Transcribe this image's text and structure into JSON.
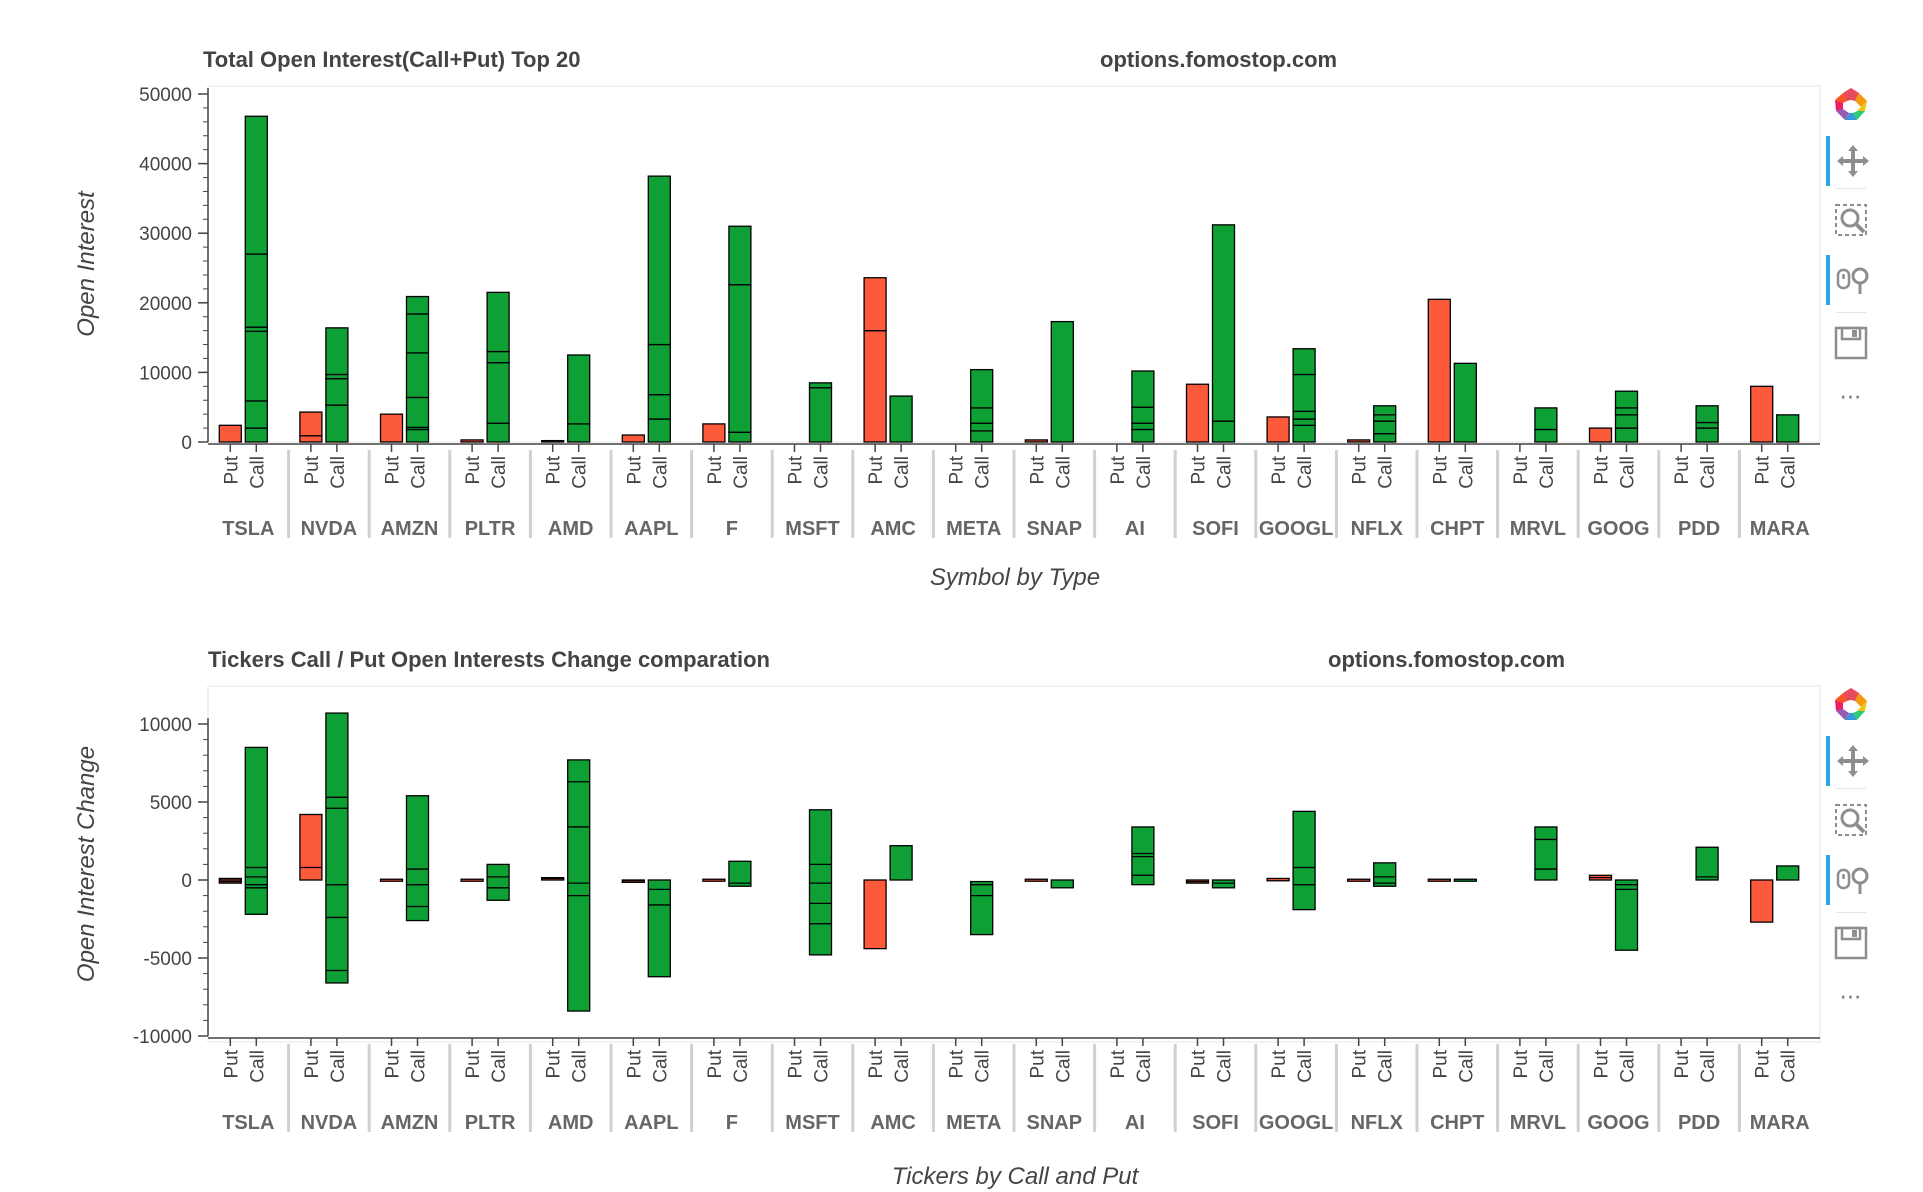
{
  "colors": {
    "put": "#fd5a3c",
    "call": "#0fa035",
    "outline": "#000000",
    "text": "#444444",
    "category_text": "#666666",
    "toolbar_active": "#26aae1"
  },
  "toolbar": {
    "icons": [
      "bokeh-logo-icon",
      "pan-icon",
      "box-zoom-icon",
      "wheel-zoom-icon",
      "save-icon",
      "more-icon"
    ],
    "more_label": "⋯"
  },
  "chart_data": [
    {
      "type": "bar",
      "stacked": true,
      "title": "Total Open Interest(Call+Put) Top 20",
      "watermark": "options.fomostop.com",
      "xlabel": "Symbol by Type",
      "ylabel": "Open Interest",
      "ylim": [
        0,
        50000
      ],
      "yticks": [
        0,
        10000,
        20000,
        30000,
        40000,
        50000
      ],
      "grid": false,
      "categories": [
        "TSLA",
        "NVDA",
        "AMZN",
        "PLTR",
        "AMD",
        "AAPL",
        "F",
        "MSFT",
        "AMC",
        "META",
        "SNAP",
        "AI",
        "SOFI",
        "GOOGL",
        "NFLX",
        "CHPT",
        "MRVL",
        "GOOG",
        "PDD",
        "MARA"
      ],
      "types": [
        "Put",
        "Call"
      ],
      "series": [
        {
          "name": "Put",
          "segments": [
            [
              2400
            ],
            [
              900,
              3400
            ],
            [
              4000
            ],
            [
              300
            ],
            [
              200
            ],
            [
              1000
            ],
            [
              2600
            ],
            [
              0
            ],
            [
              16000,
              7600
            ],
            [
              0
            ],
            [
              300
            ],
            [
              0
            ],
            [
              8300
            ],
            [
              3600
            ],
            [
              300
            ],
            [
              20500
            ],
            [
              0
            ],
            [
              2000
            ],
            [
              0
            ],
            [
              8000
            ]
          ]
        },
        {
          "name": "Call",
          "segments": [
            [
              2000,
              3900,
              10000,
              600,
              10500,
              19800
            ],
            [
              5300,
              3800,
              600,
              6700
            ],
            [
              1800,
              300,
              4300,
              6400,
              5600,
              2500
            ],
            [
              2700,
              8700,
              1600,
              8500
            ],
            [
              2600,
              9900
            ],
            [
              3300,
              3500,
              7200,
              24200
            ],
            [
              1400,
              21200,
              8400
            ],
            [
              7800,
              700
            ],
            [
              6600
            ],
            [
              1600,
              1100,
              2200,
              5500
            ],
            [
              17300
            ],
            [
              1800,
              900,
              2300,
              5200
            ],
            [
              3000,
              28200
            ],
            [
              2400,
              900,
              1100,
              5300,
              3700
            ],
            [
              1200,
              1800,
              900,
              1300
            ],
            [
              11300
            ],
            [
              1800,
              3100
            ],
            [
              2000,
              1900,
              1000,
              2400
            ],
            [
              2000,
              800,
              2400
            ],
            [
              3900
            ]
          ]
        }
      ]
    },
    {
      "type": "bar",
      "stacked": true,
      "title": "Tickers Call / Put Open Interests Change comparation",
      "watermark": "options.fomostop.com",
      "xlabel": "Tickers by Call and Put",
      "ylabel": "Open Interest Change",
      "ylim": [
        -10000,
        10000
      ],
      "yticks": [
        -10000,
        -5000,
        0,
        5000,
        10000
      ],
      "grid": false,
      "categories": [
        "TSLA",
        "NVDA",
        "AMZN",
        "PLTR",
        "AMD",
        "AAPL",
        "F",
        "MSFT",
        "AMC",
        "META",
        "SNAP",
        "AI",
        "SOFI",
        "GOOGL",
        "NFLX",
        "CHPT",
        "MRVL",
        "GOOG",
        "PDD",
        "MARA"
      ],
      "types": [
        "Put",
        "Call"
      ],
      "series": [
        {
          "name": "Put",
          "ranges": [
            [
              -200,
              100
            ],
            [
              0,
              4200
            ],
            [
              -50,
              50
            ],
            [
              -50,
              50
            ],
            [
              0,
              150
            ],
            [
              -150,
              0
            ],
            [
              -50,
              50
            ],
            [
              0,
              0
            ],
            [
              -4400,
              0
            ],
            [
              0,
              0
            ],
            [
              -50,
              50
            ],
            [
              0,
              0
            ],
            [
              -200,
              0
            ],
            [
              -50,
              100
            ],
            [
              -50,
              50
            ],
            [
              -50,
              50
            ],
            [
              0,
              0
            ],
            [
              0,
              300
            ],
            [
              0,
              0
            ],
            [
              -2700,
              0
            ]
          ],
          "lines": [
            [
              0,
              -100
            ],
            [
              800
            ],
            [],
            [],
            [
              100
            ],
            [
              -50
            ],
            [],
            [],
            [],
            [],
            [],
            [],
            [
              -100
            ],
            [],
            [],
            [],
            [],
            [
              150
            ],
            [],
            []
          ]
        },
        {
          "name": "Call",
          "ranges": [
            [
              -2200,
              8500
            ],
            [
              -6600,
              10700
            ],
            [
              -2600,
              5400
            ],
            [
              -1300,
              1000
            ],
            [
              -8400,
              7700
            ],
            [
              -6200,
              0
            ],
            [
              -400,
              1200
            ],
            [
              -4800,
              4500
            ],
            [
              0,
              2200
            ],
            [
              -3500,
              -100
            ],
            [
              -500,
              0
            ],
            [
              -300,
              3400
            ],
            [
              -500,
              0
            ],
            [
              -1900,
              4400
            ],
            [
              -400,
              1100
            ],
            [
              -50,
              50
            ],
            [
              0,
              3400
            ],
            [
              -4500,
              0
            ],
            [
              0,
              2100
            ],
            [
              0,
              900
            ]
          ],
          "lines": [
            [
              800,
              200,
              -300,
              -500
            ],
            [
              5300,
              4600,
              -300,
              -2400,
              -5800
            ],
            [
              700,
              -300,
              -1700
            ],
            [
              200,
              -500
            ],
            [
              6300,
              3400,
              -200,
              -1000
            ],
            [
              -600,
              -1600
            ],
            [
              -200
            ],
            [
              1000,
              -200,
              -1500,
              -2800
            ],
            [],
            [
              -300,
              -1000
            ],
            [],
            [
              1700,
              1500,
              300
            ],
            [
              -200
            ],
            [
              800,
              -300
            ],
            [
              200,
              -200
            ],
            [],
            [
              2600,
              700
            ],
            [
              -300,
              -600
            ],
            [
              200
            ],
            []
          ]
        }
      ]
    }
  ]
}
